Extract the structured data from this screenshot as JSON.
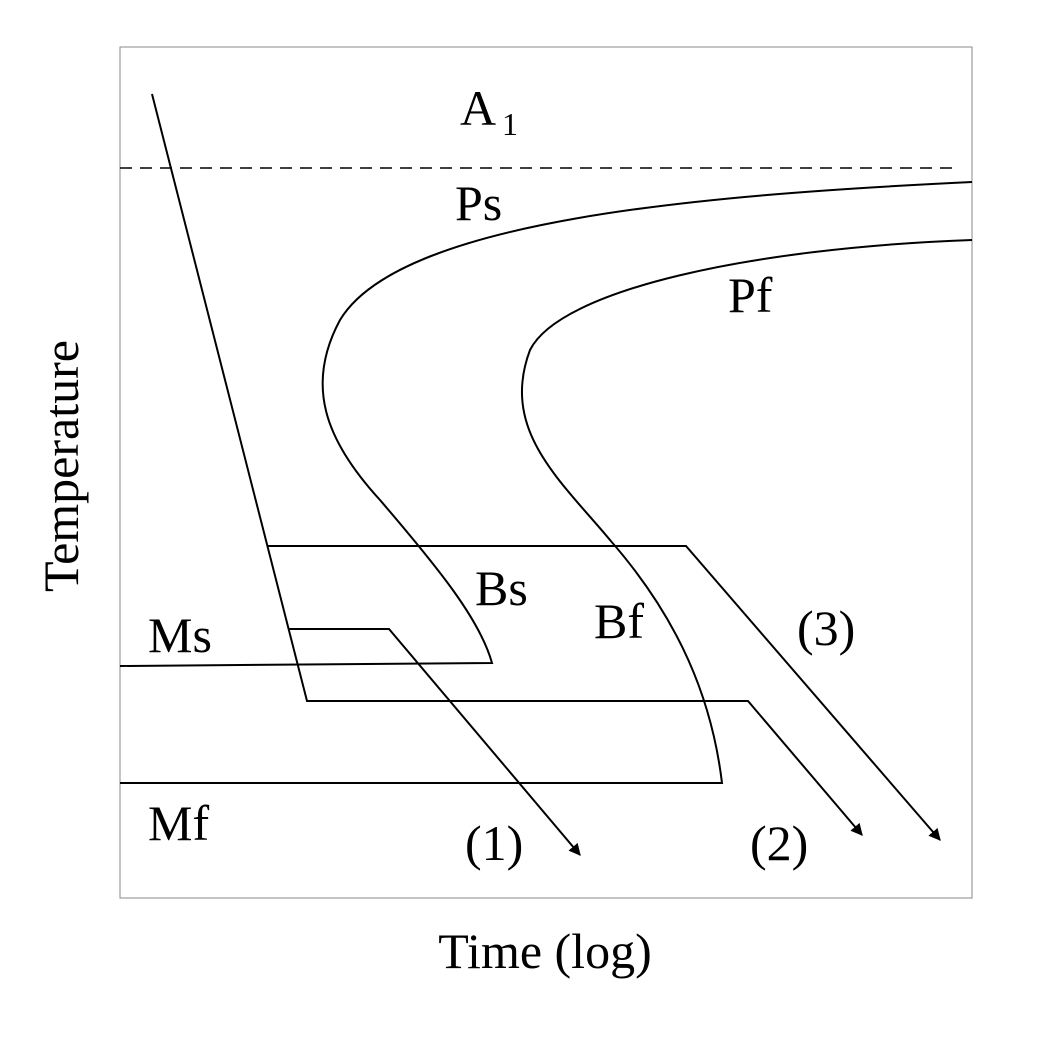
{
  "axes": {
    "x_label": "Time (log)",
    "y_label": "Temperature"
  },
  "labels": {
    "a1": {
      "text": "A",
      "subscript": "1"
    },
    "ps": "Ps",
    "pf": "Pf",
    "bs": "Bs",
    "bf": "Bf",
    "ms": "Ms",
    "mf": "Mf"
  },
  "paths": [
    "(1)",
    "(2)",
    "(3)"
  ]
}
